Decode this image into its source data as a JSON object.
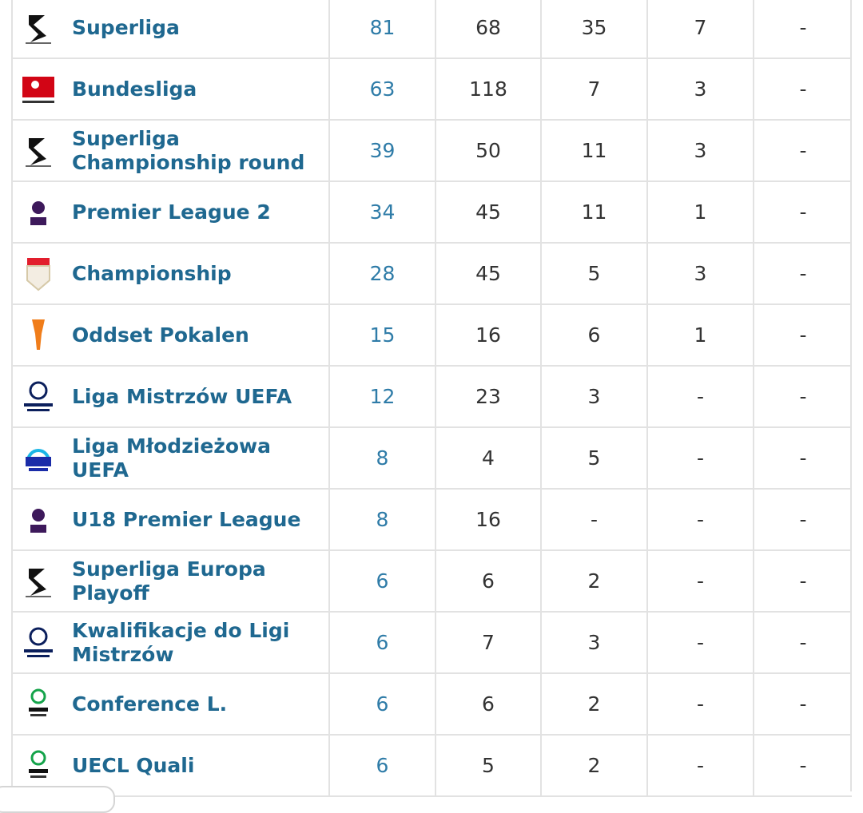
{
  "table": {
    "rows": [
      {
        "name": "Superliga",
        "cells": [
          "81",
          "68",
          "35",
          "7",
          "-"
        ]
      },
      {
        "name": "Bundesliga",
        "cells": [
          "63",
          "118",
          "7",
          "3",
          "-"
        ]
      },
      {
        "name": "Superliga Championship round",
        "cells": [
          "39",
          "50",
          "11",
          "3",
          "-"
        ]
      },
      {
        "name": "Premier League 2",
        "cells": [
          "34",
          "45",
          "11",
          "1",
          "-"
        ]
      },
      {
        "name": "Championship",
        "cells": [
          "28",
          "45",
          "5",
          "3",
          "-"
        ]
      },
      {
        "name": "Oddset Pokalen",
        "cells": [
          "15",
          "16",
          "6",
          "1",
          "-"
        ]
      },
      {
        "name": "Liga Mistrzów UEFA",
        "cells": [
          "12",
          "23",
          "3",
          "-",
          "-"
        ]
      },
      {
        "name": "Liga Młodzieżowa UEFA",
        "cells": [
          "8",
          "4",
          "5",
          "-",
          "-"
        ]
      },
      {
        "name": "U18 Premier League",
        "cells": [
          "8",
          "16",
          "-",
          "-",
          "-"
        ]
      },
      {
        "name": "Superliga Europa Playoff",
        "cells": [
          "6",
          "6",
          "2",
          "-",
          "-"
        ]
      },
      {
        "name": "Kwalifikacje do Ligi Mistrzów",
        "cells": [
          "6",
          "7",
          "3",
          "-",
          "-"
        ]
      },
      {
        "name": "Conference L.",
        "cells": [
          "6",
          "6",
          "2",
          "-",
          "-"
        ]
      },
      {
        "name": "UECL Quali",
        "cells": [
          "6",
          "5",
          "2",
          "-",
          "-"
        ]
      }
    ]
  }
}
